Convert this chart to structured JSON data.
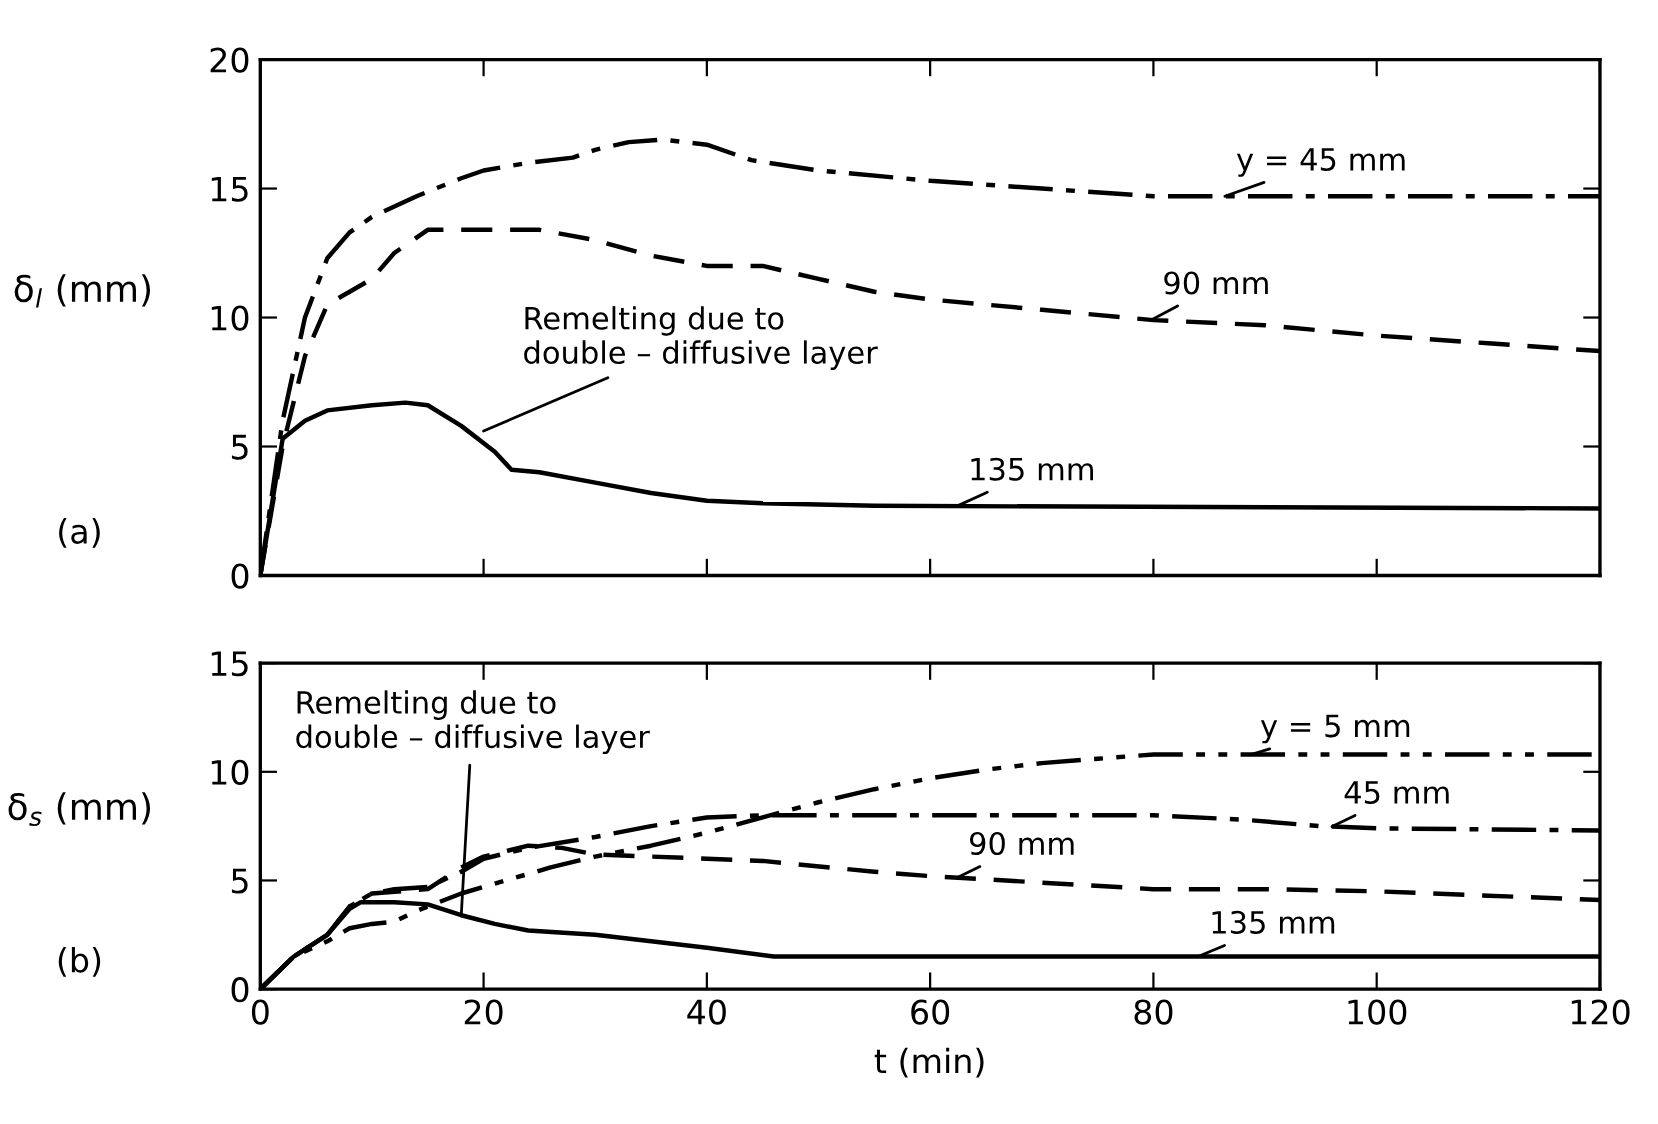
{
  "chart_data": [
    {
      "type": "line",
      "title": "(a)",
      "ylabel": "δ$_{l}$ (mm)",
      "xlim": [
        0,
        120
      ],
      "xticks": [
        0,
        20,
        40,
        60,
        80,
        100,
        120
      ],
      "ylim": [
        0,
        20
      ],
      "yticks": [
        0,
        5,
        10,
        15,
        20
      ],
      "tick_labels": "y",
      "grid": false,
      "annotations": [
        {
          "text": "Remelting due to\ndouble – diffusive layer",
          "x": 20,
          "y": 5.6
        }
      ],
      "series": [
        {
          "name": "y = 45 mm",
          "color": "#000000",
          "line_style": "dashdot",
          "x": [
            0,
            2,
            4,
            6,
            8,
            10,
            14,
            18,
            20,
            24,
            28,
            30,
            33,
            36,
            40,
            44,
            50,
            60,
            70,
            80,
            90,
            100,
            120
          ],
          "values": [
            0,
            6,
            10,
            12.3,
            13.3,
            13.9,
            14.7,
            15.4,
            15.7,
            16,
            16.2,
            16.5,
            16.8,
            16.9,
            16.7,
            16.1,
            15.7,
            15.3,
            15,
            14.7,
            14.7,
            14.7,
            14.7
          ]
        },
        {
          "name": "90 mm",
          "color": "#000000",
          "line_style": "dashed",
          "x": [
            0,
            2,
            4,
            6,
            8,
            10,
            12,
            15,
            20,
            25,
            30,
            35,
            40,
            45,
            50,
            55,
            60,
            70,
            80,
            90,
            100,
            110,
            120
          ],
          "values": [
            0,
            5,
            8.5,
            10.5,
            11,
            11.5,
            12.5,
            13.4,
            13.4,
            13.4,
            13,
            12.4,
            12,
            12,
            11.5,
            11,
            10.7,
            10.3,
            9.9,
            9.7,
            9.3,
            9,
            8.7
          ]
        },
        {
          "name": "135 mm",
          "color": "#000000",
          "line_style": "solid",
          "x": [
            0,
            2,
            4,
            6,
            10,
            13,
            15,
            18,
            21,
            22.5,
            25,
            30,
            35,
            40,
            45,
            55,
            120
          ],
          "values": [
            0,
            5.3,
            6,
            6.4,
            6.6,
            6.7,
            6.6,
            5.8,
            4.8,
            4.1,
            4,
            3.6,
            3.2,
            2.9,
            2.8,
            2.7,
            2.6
          ]
        }
      ]
    },
    {
      "type": "line",
      "title": "(b)",
      "xlabel": "t (min)",
      "ylabel": "δ$_{s}$ (mm)",
      "xlim": [
        0,
        120
      ],
      "xticks": [
        0,
        20,
        40,
        60,
        80,
        100,
        120
      ],
      "ylim": [
        0,
        15
      ],
      "yticks": [
        0,
        5,
        10,
        15
      ],
      "grid": false,
      "annotations": [
        {
          "text": "Remelting due to\ndouble – diffusive layer",
          "x": 18,
          "y": 3.4
        }
      ],
      "series": [
        {
          "name": "y = 5 mm",
          "color": "#000000",
          "line_style": "dashdotdot",
          "x": [
            0,
            3,
            6,
            8,
            10,
            12,
            14,
            18,
            22,
            26,
            30,
            35,
            40,
            45,
            50,
            55,
            60,
            65,
            70,
            75,
            80,
            90,
            120
          ],
          "values": [
            0,
            1.5,
            2.2,
            2.8,
            3,
            3.1,
            3.6,
            4.4,
            5,
            5.6,
            6.1,
            6.6,
            7.2,
            7.9,
            8.6,
            9.2,
            9.7,
            10.1,
            10.4,
            10.6,
            10.8,
            10.8,
            10.8
          ]
        },
        {
          "name": "45 mm",
          "color": "#000000",
          "line_style": "dashdot",
          "x": [
            0,
            3,
            6,
            8,
            10,
            12,
            15,
            18,
            20,
            24,
            30,
            35,
            40,
            45,
            60,
            80,
            88,
            95,
            100,
            120
          ],
          "values": [
            0,
            1.5,
            2.5,
            3.8,
            4.4,
            4.6,
            4.7,
            5.4,
            6,
            6.5,
            7,
            7.5,
            7.9,
            8,
            8,
            8,
            7.8,
            7.5,
            7.4,
            7.3
          ]
        },
        {
          "name": "90 mm",
          "color": "#000000",
          "line_style": "dashed",
          "x": [
            0,
            3,
            6,
            8,
            10,
            15,
            18,
            20,
            24,
            27,
            30,
            40,
            45,
            55,
            60,
            70,
            80,
            90,
            100,
            110,
            120
          ],
          "values": [
            0,
            1.5,
            2.5,
            3.8,
            4.4,
            4.6,
            5.6,
            6.1,
            6.6,
            6.5,
            6.2,
            6,
            5.9,
            5.4,
            5.2,
            4.9,
            4.6,
            4.6,
            4.5,
            4.3,
            4.1
          ]
        },
        {
          "name": "135 mm",
          "color": "#000000",
          "line_style": "solid",
          "x": [
            0,
            3,
            6,
            8,
            9,
            12,
            15,
            18,
            21,
            24,
            30,
            40,
            46,
            60,
            120
          ],
          "values": [
            0,
            1.5,
            2.5,
            3.7,
            4,
            4,
            3.9,
            3.4,
            3,
            2.7,
            2.5,
            1.9,
            1.5,
            1.5,
            1.5
          ]
        }
      ]
    }
  ]
}
